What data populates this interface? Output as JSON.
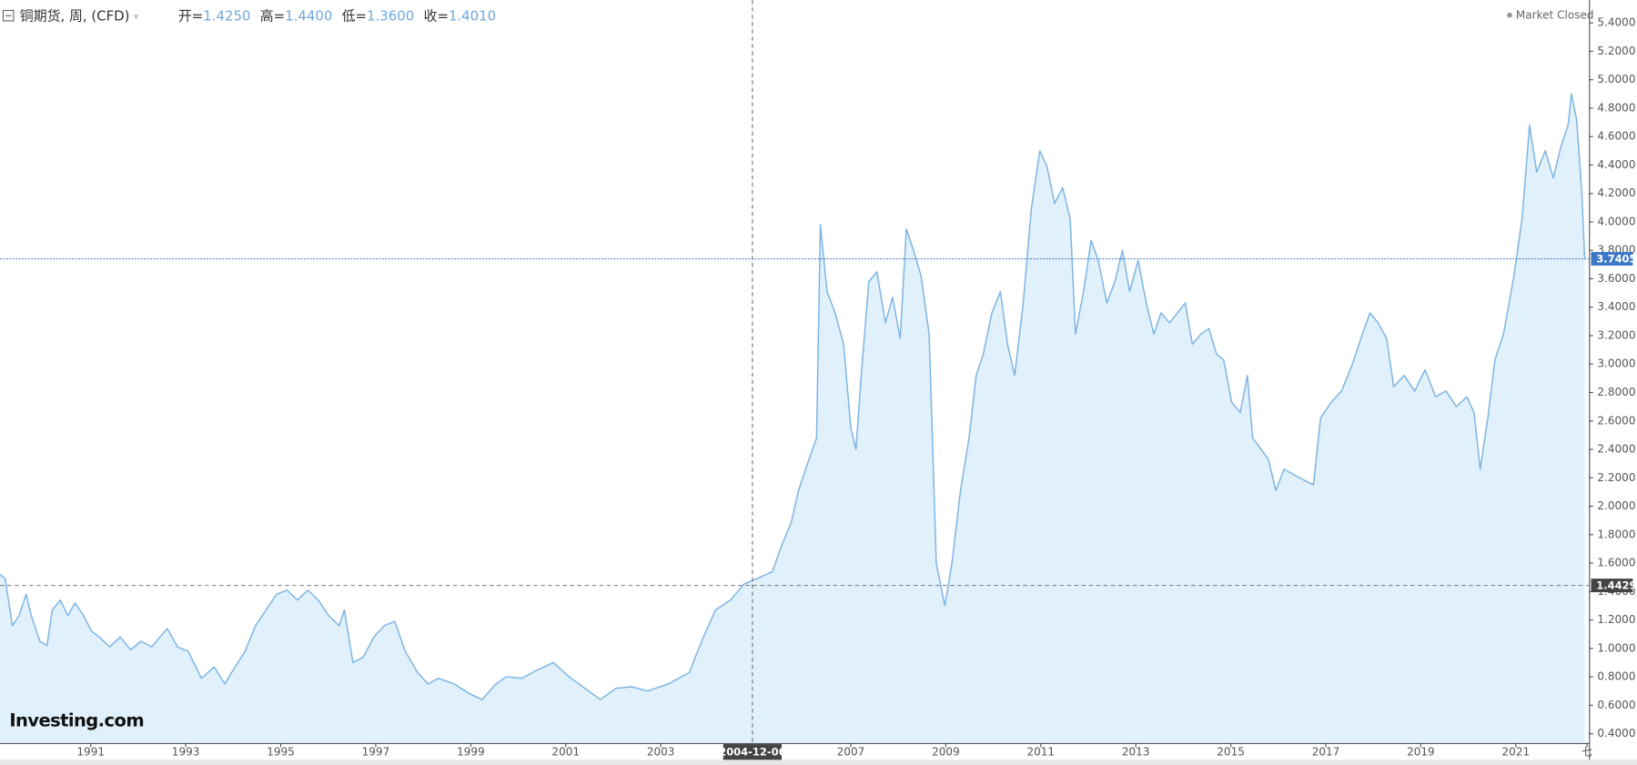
{
  "chart_data": {
    "type": "area",
    "title": "铜期货, 周, (CFD)",
    "ohlc": [
      {
        "label": "开=",
        "value": "1.4250"
      },
      {
        "label": "高=",
        "value": "1.4400"
      },
      {
        "label": "低=",
        "value": "1.3600"
      },
      {
        "label": "收=",
        "value": "1.4010"
      }
    ],
    "status": "Market Closed",
    "logo": "Investing.com",
    "color": "#7db4e3",
    "fill": "#e1f1fb",
    "x": [
      1989.09,
      1989.2,
      1989.35,
      1989.49,
      1989.64,
      1989.75,
      1989.93,
      1990.08,
      1990.19,
      1990.36,
      1990.52,
      1990.67,
      1990.85,
      1991.02,
      1991.18,
      1991.4,
      1991.62,
      1991.84,
      1992.06,
      1992.28,
      1992.61,
      1992.83,
      1993.05,
      1993.33,
      1993.6,
      1993.82,
      1994.04,
      1994.25,
      1994.47,
      1994.69,
      1994.91,
      1995.13,
      1995.35,
      1995.57,
      1995.79,
      1996.01,
      1996.23,
      1996.34,
      1996.52,
      1996.74,
      1996.96,
      1997.18,
      1997.4,
      1997.62,
      1997.88,
      1998.1,
      1998.32,
      1998.65,
      1998.98,
      1999.24,
      1999.53,
      1999.75,
      2000.08,
      2000.41,
      2000.74,
      2001.07,
      2001.4,
      2001.73,
      2002.06,
      2002.39,
      2002.72,
      2003.16,
      2003.6,
      2003.86,
      2004.15,
      2004.47,
      2004.74,
      2005.02,
      2005.35,
      2005.53,
      2005.75,
      2005.9,
      2006.12,
      2006.28,
      2006.36,
      2006.5,
      2006.67,
      2006.85,
      2007.0,
      2007.11,
      2007.22,
      2007.38,
      2007.55,
      2007.73,
      2007.88,
      2008.04,
      2008.17,
      2008.32,
      2008.48,
      2008.65,
      2008.8,
      2008.98,
      2009.13,
      2009.31,
      2009.49,
      2009.64,
      2009.79,
      2009.97,
      2010.15,
      2010.3,
      2010.45,
      2010.63,
      2010.8,
      2010.98,
      2011.13,
      2011.29,
      2011.46,
      2011.62,
      2011.73,
      2011.9,
      2012.06,
      2012.21,
      2012.39,
      2012.56,
      2012.72,
      2012.87,
      2013.05,
      2013.22,
      2013.38,
      2013.53,
      2013.71,
      2013.88,
      2014.04,
      2014.19,
      2014.37,
      2014.54,
      2014.7,
      2014.85,
      2015.02,
      2015.2,
      2015.35,
      2015.46,
      2015.64,
      2015.79,
      2015.95,
      2016.12,
      2016.34,
      2016.56,
      2016.74,
      2016.89,
      2017.11,
      2017.33,
      2017.55,
      2017.77,
      2017.93,
      2018.1,
      2018.28,
      2018.43,
      2018.65,
      2018.87,
      2019.09,
      2019.31,
      2019.53,
      2019.75,
      2019.97,
      2020.12,
      2020.25,
      2020.41,
      2020.56,
      2020.74,
      2020.96,
      2021.13,
      2021.29,
      2021.44,
      2021.62,
      2021.79,
      2021.95,
      2022.1,
      2022.17,
      2022.28,
      2022.39,
      2022.45
    ],
    "values": [
      1.52,
      1.49,
      1.16,
      1.23,
      1.38,
      1.23,
      1.05,
      1.02,
      1.27,
      1.34,
      1.23,
      1.32,
      1.23,
      1.12,
      1.08,
      1.01,
      1.08,
      0.99,
      1.05,
      1.01,
      1.14,
      1.01,
      0.98,
      0.79,
      0.87,
      0.75,
      0.87,
      0.98,
      1.16,
      1.27,
      1.38,
      1.41,
      1.34,
      1.41,
      1.34,
      1.23,
      1.16,
      1.27,
      0.9,
      0.94,
      1.08,
      1.16,
      1.19,
      0.98,
      0.83,
      0.75,
      0.79,
      0.75,
      0.68,
      0.64,
      0.75,
      0.8,
      0.79,
      0.85,
      0.9,
      0.8,
      0.72,
      0.64,
      0.72,
      0.73,
      0.7,
      0.75,
      0.83,
      1.05,
      1.27,
      1.34,
      1.45,
      1.49,
      1.54,
      1.71,
      1.89,
      2.11,
      2.33,
      2.48,
      3.98,
      3.51,
      3.36,
      3.14,
      2.55,
      2.4,
      2.92,
      3.58,
      3.65,
      3.29,
      3.47,
      3.18,
      3.95,
      3.8,
      3.62,
      3.21,
      1.6,
      1.3,
      1.6,
      2.11,
      2.48,
      2.92,
      3.07,
      3.36,
      3.51,
      3.14,
      2.92,
      3.43,
      4.09,
      4.5,
      4.39,
      4.13,
      4.24,
      4.02,
      3.21,
      3.51,
      3.87,
      3.73,
      3.43,
      3.58,
      3.8,
      3.51,
      3.73,
      3.43,
      3.21,
      3.36,
      3.29,
      3.36,
      3.43,
      3.14,
      3.21,
      3.25,
      3.07,
      3.03,
      2.73,
      2.66,
      2.92,
      2.48,
      2.4,
      2.33,
      2.11,
      2.26,
      2.22,
      2.18,
      2.15,
      2.62,
      2.73,
      2.81,
      2.99,
      3.21,
      3.36,
      3.29,
      3.18,
      2.84,
      2.92,
      2.81,
      2.96,
      2.77,
      2.81,
      2.7,
      2.77,
      2.66,
      2.26,
      2.62,
      3.03,
      3.21,
      3.62,
      4.02,
      4.68,
      4.35,
      4.5,
      4.31,
      4.53,
      4.68,
      4.9,
      4.72,
      4.2,
      3.74
    ],
    "xlim": [
      1989.09,
      2022.54
    ],
    "ylim": [
      0.334,
      5.561
    ],
    "xticks": [
      1991,
      1993,
      1995,
      1997,
      1999,
      2001,
      2003,
      2007,
      2009,
      2011,
      2013,
      2015,
      2017,
      2019,
      2021,
      {
        "value": 2022.5,
        "label": "七"
      }
    ],
    "yticks": [
      {
        "value": 0.4,
        "label": "0.4000"
      },
      {
        "value": 0.6,
        "label": "0.6000"
      },
      {
        "value": 0.8,
        "label": "0.8000"
      },
      {
        "value": 1.0,
        "label": "1.0000"
      },
      {
        "value": 1.2,
        "label": "1.2000"
      },
      {
        "value": 1.4,
        "label": "1.4000"
      },
      {
        "value": 1.6,
        "label": "1.6000"
      },
      {
        "value": 1.8,
        "label": "1.8000"
      },
      {
        "value": 2.0,
        "label": "2.0000"
      },
      {
        "value": 2.2,
        "label": "2.2000"
      },
      {
        "value": 2.4,
        "label": "2.4000"
      },
      {
        "value": 2.6,
        "label": "2.6000"
      },
      {
        "value": 2.8,
        "label": "2.8000"
      },
      {
        "value": 3.0,
        "label": "3.0000"
      },
      {
        "value": 3.2,
        "label": "3.2000"
      },
      {
        "value": 3.4,
        "label": "3.4000"
      },
      {
        "value": 3.6,
        "label": "3.6000"
      },
      {
        "value": 3.8,
        "label": "3.8000"
      },
      {
        "value": 4.0,
        "label": "4.0000"
      },
      {
        "value": 4.2,
        "label": "4.2000"
      },
      {
        "value": 4.4,
        "label": "4.4000"
      },
      {
        "value": 4.6,
        "label": "4.6000"
      },
      {
        "value": 4.8,
        "label": "4.8000"
      },
      {
        "value": 5.0,
        "label": "5.0000"
      },
      {
        "value": 5.2,
        "label": "5.2000"
      },
      {
        "value": 5.4,
        "label": "5.4000"
      }
    ],
    "last_price": 3.7405,
    "crosshair": {
      "x": {
        "value": 2004.93,
        "label": "2004-12-06"
      },
      "y": 1.4429
    }
  }
}
